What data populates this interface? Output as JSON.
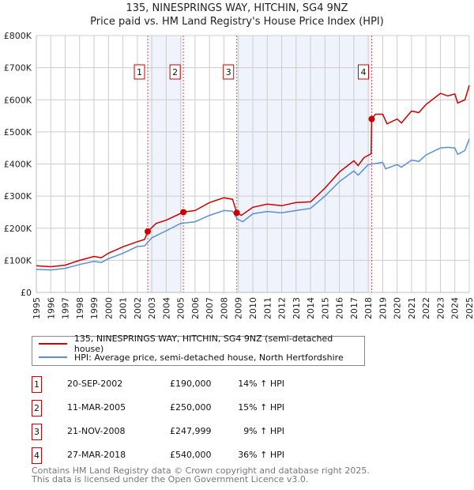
{
  "chart_data": {
    "type": "line",
    "title": "135, NINESPRINGS WAY, HITCHIN, SG4 9NZ",
    "subtitle": "Price paid vs. HM Land Registry's House Price Index (HPI)",
    "xlim": [
      1995,
      2025
    ],
    "ylim": [
      0,
      800000
    ],
    "y_ticks": [
      {
        "v": 0,
        "label": "£0"
      },
      {
        "v": 100000,
        "label": "£100K"
      },
      {
        "v": 200000,
        "label": "£200K"
      },
      {
        "v": 300000,
        "label": "£300K"
      },
      {
        "v": 400000,
        "label": "£400K"
      },
      {
        "v": 500000,
        "label": "£500K"
      },
      {
        "v": 600000,
        "label": "£600K"
      },
      {
        "v": 700000,
        "label": "£700K"
      },
      {
        "v": 800000,
        "label": "£800K"
      }
    ],
    "x_ticks": [
      "1995",
      "1996",
      "1997",
      "1998",
      "1999",
      "2000",
      "2001",
      "2002",
      "2003",
      "2004",
      "2005",
      "2006",
      "2007",
      "2008",
      "2009",
      "2010",
      "2011",
      "2012",
      "2013",
      "2014",
      "2015",
      "2016",
      "2017",
      "2018",
      "2019",
      "2020",
      "2021",
      "2022",
      "2023",
      "2024",
      "2025"
    ],
    "grid": true,
    "shaded_ranges": [
      [
        2002.72,
        2005.19
      ],
      [
        2008.89,
        2018.24
      ]
    ],
    "series": [
      {
        "name": "135, NINESPRINGS WAY, HITCHIN, SG4 9NZ (semi-detached house)",
        "color": "#cc0000",
        "x": [
          1995,
          1996,
          1997,
          1998,
          1999,
          1999.5,
          2000,
          2001,
          2002,
          2002.5,
          2002.72,
          2003.3,
          2004,
          2005.19,
          2006,
          2007,
          2008,
          2008.6,
          2008.89,
          2009.2,
          2010,
          2011,
          2012,
          2013,
          2014,
          2015,
          2016,
          2017,
          2017.3,
          2017.7,
          2018.2,
          2018.24,
          2018.5,
          2019,
          2019.3,
          2020,
          2020.3,
          2021,
          2021.5,
          2022,
          2023,
          2023.5,
          2024,
          2024.2,
          2024.7,
          2025
        ],
        "y": [
          83000,
          80000,
          85000,
          100000,
          112000,
          108000,
          122000,
          142000,
          158000,
          165000,
          190000,
          215000,
          225000,
          250000,
          255000,
          280000,
          295000,
          290000,
          248000,
          240000,
          265000,
          275000,
          270000,
          280000,
          282000,
          325000,
          375000,
          410000,
          395000,
          420000,
          432000,
          540000,
          555000,
          555000,
          525000,
          540000,
          528000,
          565000,
          560000,
          585000,
          620000,
          612000,
          618000,
          590000,
          600000,
          645000
        ]
      },
      {
        "name": "HPI: Average price, semi-detached house, North Hertfordshire",
        "color": "#5b8fd4",
        "x": [
          1995,
          1996,
          1997,
          1998,
          1999,
          1999.5,
          2000,
          2001,
          2002,
          2002.5,
          2003,
          2004,
          2005,
          2006,
          2007,
          2008,
          2008.6,
          2008.9,
          2009.3,
          2010,
          2011,
          2012,
          2013,
          2014,
          2015,
          2016,
          2017,
          2017.3,
          2018,
          2019,
          2019.2,
          2020,
          2020.3,
          2021,
          2021.5,
          2022,
          2023,
          2023.5,
          2024,
          2024.2,
          2024.7,
          2025
        ],
        "y": [
          72000,
          70000,
          75000,
          87000,
          97000,
          93000,
          105000,
          122000,
          143000,
          145000,
          170000,
          192000,
          215000,
          220000,
          240000,
          255000,
          253000,
          230000,
          220000,
          245000,
          252000,
          248000,
          255000,
          262000,
          300000,
          345000,
          378000,
          365000,
          398000,
          405000,
          385000,
          398000,
          390000,
          412000,
          408000,
          428000,
          450000,
          452000,
          450000,
          430000,
          442000,
          478000
        ]
      }
    ],
    "sales": [
      {
        "n": "1",
        "x": 2002.72,
        "y": 190000,
        "date": "20-SEP-2002",
        "price": "£190,000",
        "hpi": "14% ↑ HPI"
      },
      {
        "n": "2",
        "x": 2005.19,
        "y": 250000,
        "date": "11-MAR-2005",
        "price": "£250,000",
        "hpi": "15% ↑ HPI"
      },
      {
        "n": "3",
        "x": 2008.89,
        "y": 247999,
        "date": "21-NOV-2008",
        "price": "£247,999",
        "hpi": "9% ↑ HPI"
      },
      {
        "n": "4",
        "x": 2018.24,
        "y": 540000,
        "date": "27-MAR-2018",
        "price": "£540,000",
        "hpi": "36% ↑ HPI"
      }
    ],
    "legend_placement": "below"
  },
  "footer": {
    "line1": "Contains HM Land Registry data © Crown copyright and database right 2025.",
    "line2": "This data is licensed under the Open Government Licence v3.0."
  }
}
